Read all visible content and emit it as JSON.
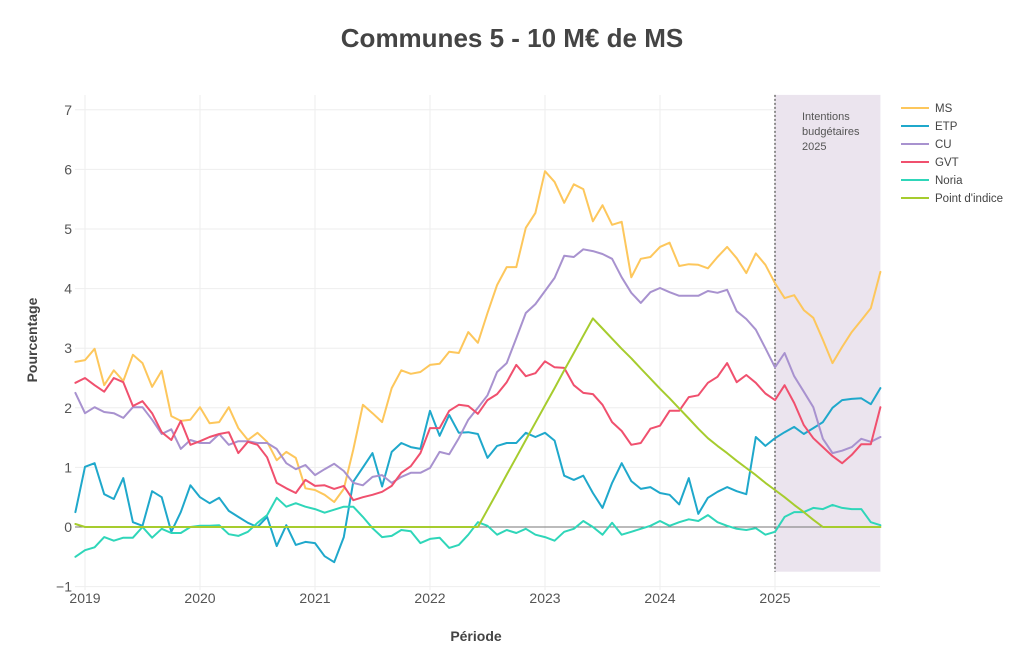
{
  "chart_data": {
    "type": "line",
    "title": "Communes 5 - 10 M€ de MS",
    "xlabel": "Période",
    "ylabel": "Pourcentage",
    "xlim": [
      "2018-12",
      "2025-12"
    ],
    "ylim": [
      -1,
      7.25
    ],
    "grid": true,
    "zero_line": true,
    "legend_position": "top-right (outside plot)",
    "xticks": [
      "2019-01",
      "2020-01",
      "2021-01",
      "2022-01",
      "2023-01",
      "2024-01",
      "2025-01"
    ],
    "xtick_labels": [
      "2019",
      "2020",
      "2021",
      "2022",
      "2023",
      "2024",
      "2025"
    ],
    "yticks": [
      -1,
      0,
      1,
      2,
      3,
      4,
      5,
      6,
      7
    ],
    "ytick_labels": [
      "−1",
      "0",
      "1",
      "2",
      "3",
      "4",
      "5",
      "6",
      "7"
    ],
    "x": [
      "2018-12",
      "2019-01",
      "2019-02",
      "2019-03",
      "2019-04",
      "2019-05",
      "2019-06",
      "2019-07",
      "2019-08",
      "2019-09",
      "2019-10",
      "2019-11",
      "2019-12",
      "2020-01",
      "2020-02",
      "2020-03",
      "2020-04",
      "2020-05",
      "2020-06",
      "2020-07",
      "2020-08",
      "2020-09",
      "2020-10",
      "2020-11",
      "2020-12",
      "2021-01",
      "2021-02",
      "2021-03",
      "2021-04",
      "2021-05",
      "2021-06",
      "2021-07",
      "2021-08",
      "2021-09",
      "2021-10",
      "2021-11",
      "2021-12",
      "2022-01",
      "2022-02",
      "2022-03",
      "2022-04",
      "2022-05",
      "2022-06",
      "2022-07",
      "2022-08",
      "2022-09",
      "2022-10",
      "2022-11",
      "2022-12",
      "2023-01",
      "2023-02",
      "2023-03",
      "2023-04",
      "2023-05",
      "2023-06",
      "2023-07",
      "2023-08",
      "2023-09",
      "2023-10",
      "2023-11",
      "2023-12",
      "2024-01",
      "2024-02",
      "2024-03",
      "2024-04",
      "2024-05",
      "2024-06",
      "2024-07",
      "2024-08",
      "2024-09",
      "2024-10",
      "2024-11",
      "2024-12",
      "2025-01",
      "2025-02",
      "2025-03",
      "2025-04",
      "2025-05",
      "2025-06",
      "2025-07",
      "2025-08",
      "2025-09",
      "2025-10",
      "2025-11",
      "2025-12"
    ],
    "series": [
      {
        "name": "MS",
        "color": "#fdc75c",
        "values": [
          2.77,
          2.8,
          2.99,
          2.38,
          2.63,
          2.45,
          2.89,
          2.75,
          2.35,
          2.62,
          1.86,
          1.78,
          1.8,
          2.01,
          1.74,
          1.76,
          2.01,
          1.66,
          1.46,
          1.58,
          1.43,
          1.12,
          1.26,
          1.16,
          0.65,
          0.62,
          0.54,
          0.42,
          0.64,
          1.3,
          2.05,
          1.91,
          1.76,
          2.33,
          2.63,
          2.57,
          2.6,
          2.72,
          2.74,
          2.94,
          2.92,
          3.27,
          3.09,
          3.59,
          4.06,
          4.36,
          4.36,
          5.02,
          5.27,
          5.97,
          5.79,
          5.44,
          5.75,
          5.67,
          5.13,
          5.4,
          5.07,
          5.12,
          4.19,
          4.5,
          4.53,
          4.7,
          4.77,
          4.38,
          4.41,
          4.4,
          4.34,
          4.53,
          4.7,
          4.51,
          4.26,
          4.59,
          4.4,
          4.09,
          3.84,
          3.89,
          3.64,
          3.51,
          3.14,
          2.75,
          3.02,
          3.27,
          3.47,
          3.67,
          4.28
        ]
      },
      {
        "name": "ETP",
        "color": "#1fa8cb",
        "values": [
          0.25,
          1.01,
          1.07,
          0.55,
          0.47,
          0.82,
          0.08,
          0.02,
          0.6,
          0.5,
          -0.08,
          0.25,
          0.7,
          0.5,
          0.4,
          0.49,
          0.27,
          0.17,
          0.07,
          0.0,
          0.17,
          -0.32,
          0.03,
          -0.3,
          -0.25,
          -0.27,
          -0.49,
          -0.59,
          -0.17,
          0.76,
          1.0,
          1.24,
          0.68,
          1.26,
          1.41,
          1.34,
          1.31,
          1.95,
          1.53,
          1.88,
          1.58,
          1.59,
          1.56,
          1.16,
          1.36,
          1.41,
          1.41,
          1.58,
          1.51,
          1.58,
          1.45,
          0.86,
          0.79,
          0.86,
          0.57,
          0.32,
          0.74,
          1.07,
          0.77,
          0.64,
          0.67,
          0.57,
          0.54,
          0.38,
          0.82,
          0.22,
          0.49,
          0.59,
          0.67,
          0.6,
          0.55,
          1.51,
          1.36,
          1.49,
          1.59,
          1.68,
          1.56,
          1.66,
          1.76,
          2.0,
          2.13,
          2.15,
          2.16,
          2.06,
          2.33
        ]
      },
      {
        "name": "CU",
        "color": "#a892cf",
        "values": [
          2.25,
          1.91,
          2.01,
          1.93,
          1.91,
          1.83,
          2.01,
          2.01,
          1.8,
          1.56,
          1.64,
          1.31,
          1.46,
          1.41,
          1.41,
          1.56,
          1.38,
          1.44,
          1.44,
          1.41,
          1.41,
          1.31,
          1.07,
          0.97,
          1.04,
          0.87,
          0.97,
          1.06,
          0.94,
          0.74,
          0.7,
          0.84,
          0.87,
          0.74,
          0.84,
          0.91,
          0.91,
          0.99,
          1.26,
          1.22,
          1.49,
          1.8,
          2.0,
          2.21,
          2.6,
          2.75,
          3.17,
          3.59,
          3.74,
          3.96,
          4.18,
          4.55,
          4.53,
          4.66,
          4.63,
          4.58,
          4.5,
          4.19,
          3.93,
          3.76,
          3.94,
          4.01,
          3.94,
          3.88,
          3.88,
          3.88,
          3.96,
          3.93,
          3.98,
          3.62,
          3.49,
          3.31,
          3.0,
          2.68,
          2.92,
          2.53,
          2.27,
          2.01,
          1.48,
          1.24,
          1.28,
          1.34,
          1.48,
          1.43,
          1.51
        ]
      },
      {
        "name": "GVT",
        "color": "#f0506e",
        "values": [
          2.42,
          2.5,
          2.38,
          2.27,
          2.5,
          2.43,
          2.03,
          2.11,
          1.91,
          1.59,
          1.46,
          1.78,
          1.38,
          1.44,
          1.51,
          1.56,
          1.59,
          1.24,
          1.43,
          1.38,
          1.17,
          0.74,
          0.65,
          0.57,
          0.79,
          0.69,
          0.7,
          0.64,
          0.69,
          0.45,
          0.5,
          0.54,
          0.59,
          0.69,
          0.91,
          1.02,
          1.24,
          1.66,
          1.66,
          1.95,
          2.05,
          2.03,
          1.9,
          2.13,
          2.23,
          2.43,
          2.72,
          2.53,
          2.58,
          2.78,
          2.68,
          2.67,
          2.38,
          2.25,
          2.23,
          2.05,
          1.76,
          1.61,
          1.38,
          1.41,
          1.65,
          1.7,
          1.95,
          1.95,
          2.18,
          2.21,
          2.42,
          2.52,
          2.75,
          2.43,
          2.55,
          2.42,
          2.24,
          2.13,
          2.38,
          2.08,
          1.71,
          1.49,
          1.34,
          1.19,
          1.07,
          1.21,
          1.39,
          1.39,
          2.01
        ]
      },
      {
        "name": "Noria",
        "color": "#2fd6b9",
        "values": [
          -0.5,
          -0.39,
          -0.34,
          -0.17,
          -0.23,
          -0.18,
          -0.18,
          0.0,
          -0.18,
          -0.03,
          -0.1,
          -0.1,
          0.0,
          0.02,
          0.02,
          0.03,
          -0.12,
          -0.15,
          -0.08,
          0.07,
          0.2,
          0.49,
          0.34,
          0.4,
          0.34,
          0.3,
          0.24,
          0.29,
          0.34,
          0.34,
          0.17,
          -0.02,
          -0.17,
          -0.15,
          -0.05,
          -0.07,
          -0.27,
          -0.2,
          -0.18,
          -0.35,
          -0.3,
          -0.13,
          0.08,
          0.02,
          -0.13,
          -0.05,
          -0.1,
          -0.03,
          -0.13,
          -0.17,
          -0.23,
          -0.08,
          -0.03,
          0.1,
          0.0,
          -0.13,
          0.07,
          -0.13,
          -0.08,
          -0.03,
          0.02,
          0.1,
          0.02,
          0.08,
          0.13,
          0.1,
          0.2,
          0.08,
          0.02,
          -0.03,
          -0.05,
          -0.02,
          -0.13,
          -0.08,
          0.17,
          0.25,
          0.25,
          0.32,
          0.3,
          0.37,
          0.32,
          0.3,
          0.3,
          0.08,
          0.03
        ]
      },
      {
        "name": "Point d'indice",
        "color": "#a6cc2e",
        "values": [
          0.05,
          0,
          0,
          0,
          0,
          0,
          0,
          0,
          0,
          0,
          0,
          0,
          0,
          0,
          0,
          0,
          0,
          0,
          0,
          0,
          0,
          0,
          0,
          0,
          0,
          0,
          0,
          0,
          0,
          0,
          0,
          0,
          0,
          0,
          0,
          0,
          0,
          0,
          0,
          0,
          0,
          0,
          0,
          0.29,
          0.58,
          0.88,
          1.17,
          1.46,
          1.75,
          2.04,
          2.33,
          2.63,
          2.92,
          3.21,
          3.5,
          3.33,
          3.16,
          2.99,
          2.83,
          2.66,
          2.49,
          2.32,
          2.16,
          1.99,
          1.82,
          1.65,
          1.49,
          1.36,
          1.24,
          1.11,
          0.99,
          0.87,
          0.74,
          0.62,
          0.5,
          0.37,
          0.25,
          0.12,
          0,
          0,
          0,
          0,
          0,
          0,
          0
        ]
      }
    ],
    "annotation": {
      "lines": [
        "Intentions",
        "budgétaires",
        "2025"
      ],
      "region_x": [
        "2025-01",
        "2025-12"
      ],
      "region_y": [
        -0.75,
        7.25
      ],
      "region_color": "#ebe4ee",
      "divider_at": "2025-01",
      "divider_color": "#777777"
    },
    "zero_line_color": "#777777"
  }
}
